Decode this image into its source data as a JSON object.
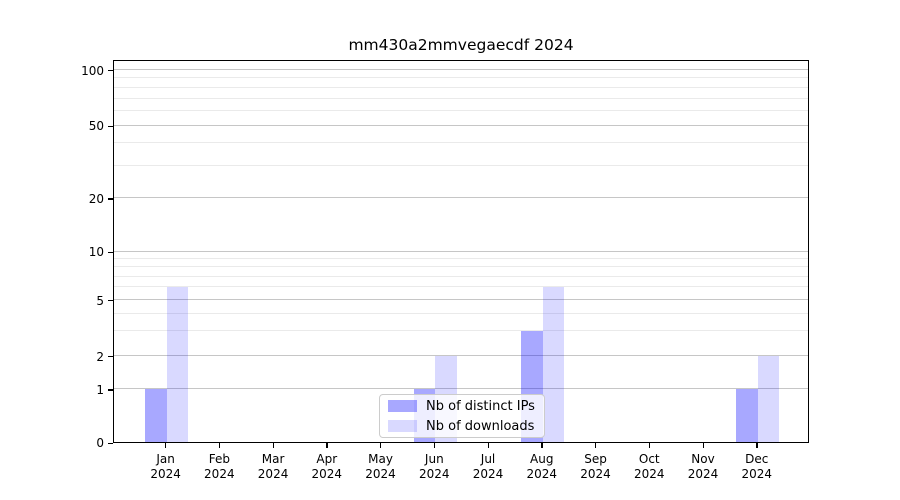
{
  "chart_data": {
    "type": "bar",
    "title": "mm430a2mmvegaecdf 2024",
    "categories": [
      "Jan",
      "Feb",
      "Mar",
      "Apr",
      "May",
      "Jun",
      "Jul",
      "Aug",
      "Sep",
      "Oct",
      "Nov",
      "Dec"
    ],
    "year_label": "2024",
    "x_tick_labels": [
      "Jan 2024",
      "Feb 2024",
      "Mar 2024",
      "Apr 2024",
      "May 2024",
      "Jun 2024",
      "Jul 2024",
      "Aug 2024",
      "Sep 2024",
      "Oct 2024",
      "Nov 2024",
      "Dec 2024"
    ],
    "series": [
      {
        "name": "Nb of distinct IPs",
        "color": "rgba(0,0,255,0.34)",
        "values": [
          1,
          0,
          0,
          0,
          0,
          1,
          0,
          3,
          0,
          0,
          0,
          1
        ]
      },
      {
        "name": "Nb of downloads",
        "color": "rgba(0,0,255,0.15)",
        "values": [
          6,
          0,
          0,
          0,
          0,
          2,
          0,
          6,
          0,
          0,
          0,
          2
        ]
      }
    ],
    "yscale": "symlog",
    "yticks": [
      0,
      1,
      2,
      5,
      10,
      20,
      50,
      100
    ],
    "minor_yticks": [
      3,
      4,
      6,
      7,
      8,
      9,
      30,
      40,
      60,
      70,
      80,
      90
    ],
    "ylim": [
      0,
      120
    ],
    "grid": "horizontal",
    "legend_position": "lower center"
  },
  "colors": {
    "major_grid": "#c6c6c6",
    "minor_grid": "#eaeaea",
    "spine": "#000000",
    "legend_border": "#cccccc",
    "legend_background": "rgba(255,255,255,0.8)"
  }
}
